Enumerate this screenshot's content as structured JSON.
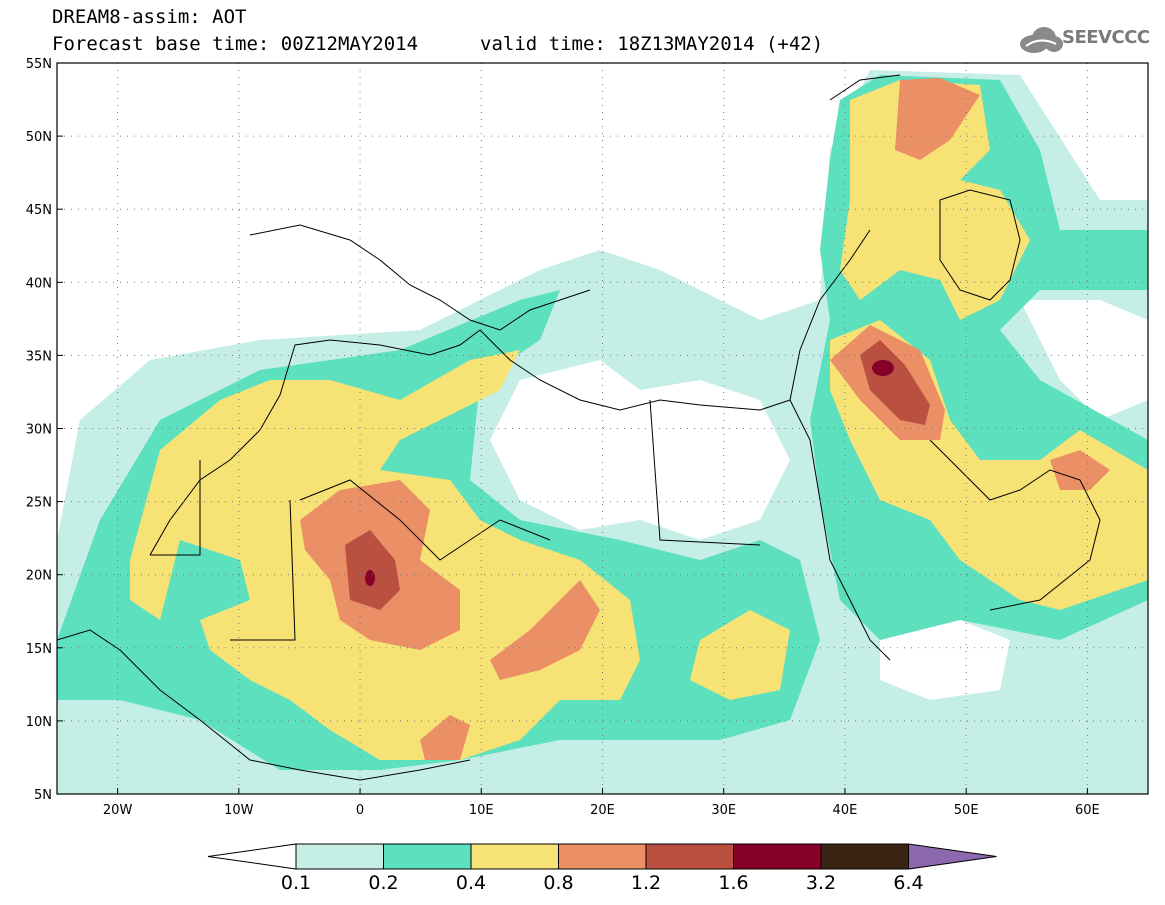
{
  "header": {
    "line1": "DREAM8-assim: AOT",
    "line2": "Forecast base time: 00Z12MAY2014",
    "valid": "valid time: 18Z13MAY2014 (+42)",
    "logo_text": "SEEVCCC",
    "logo_icon": "cloud-icon"
  },
  "map": {
    "lon_range": [
      -25,
      65
    ],
    "lat_range": [
      5,
      55
    ],
    "lat_labels": [
      "55N",
      "50N",
      "45N",
      "40N",
      "35N",
      "30N",
      "25N",
      "20N",
      "15N",
      "10N",
      "5N"
    ],
    "lat_values": [
      55,
      50,
      45,
      40,
      35,
      30,
      25,
      20,
      15,
      10,
      5
    ],
    "lon_labels": [
      "20W",
      "10W",
      "0",
      "10E",
      "20E",
      "30E",
      "40E",
      "50E",
      "60E"
    ],
    "lon_values": [
      -20,
      -10,
      0,
      10,
      20,
      30,
      40,
      50,
      60
    ],
    "grid": "dotted"
  },
  "legend": {
    "colors": [
      "#ffffff",
      "#c5efe6",
      "#5de0bd",
      "#f7e276",
      "#ea8f66",
      "#b95040",
      "#860028",
      "#3c2414",
      "#8c68ae"
    ],
    "labels": [
      "0.1",
      "0.2",
      "0.4",
      "0.8",
      "1.2",
      "1.6",
      "3.2",
      "6.4"
    ]
  }
}
